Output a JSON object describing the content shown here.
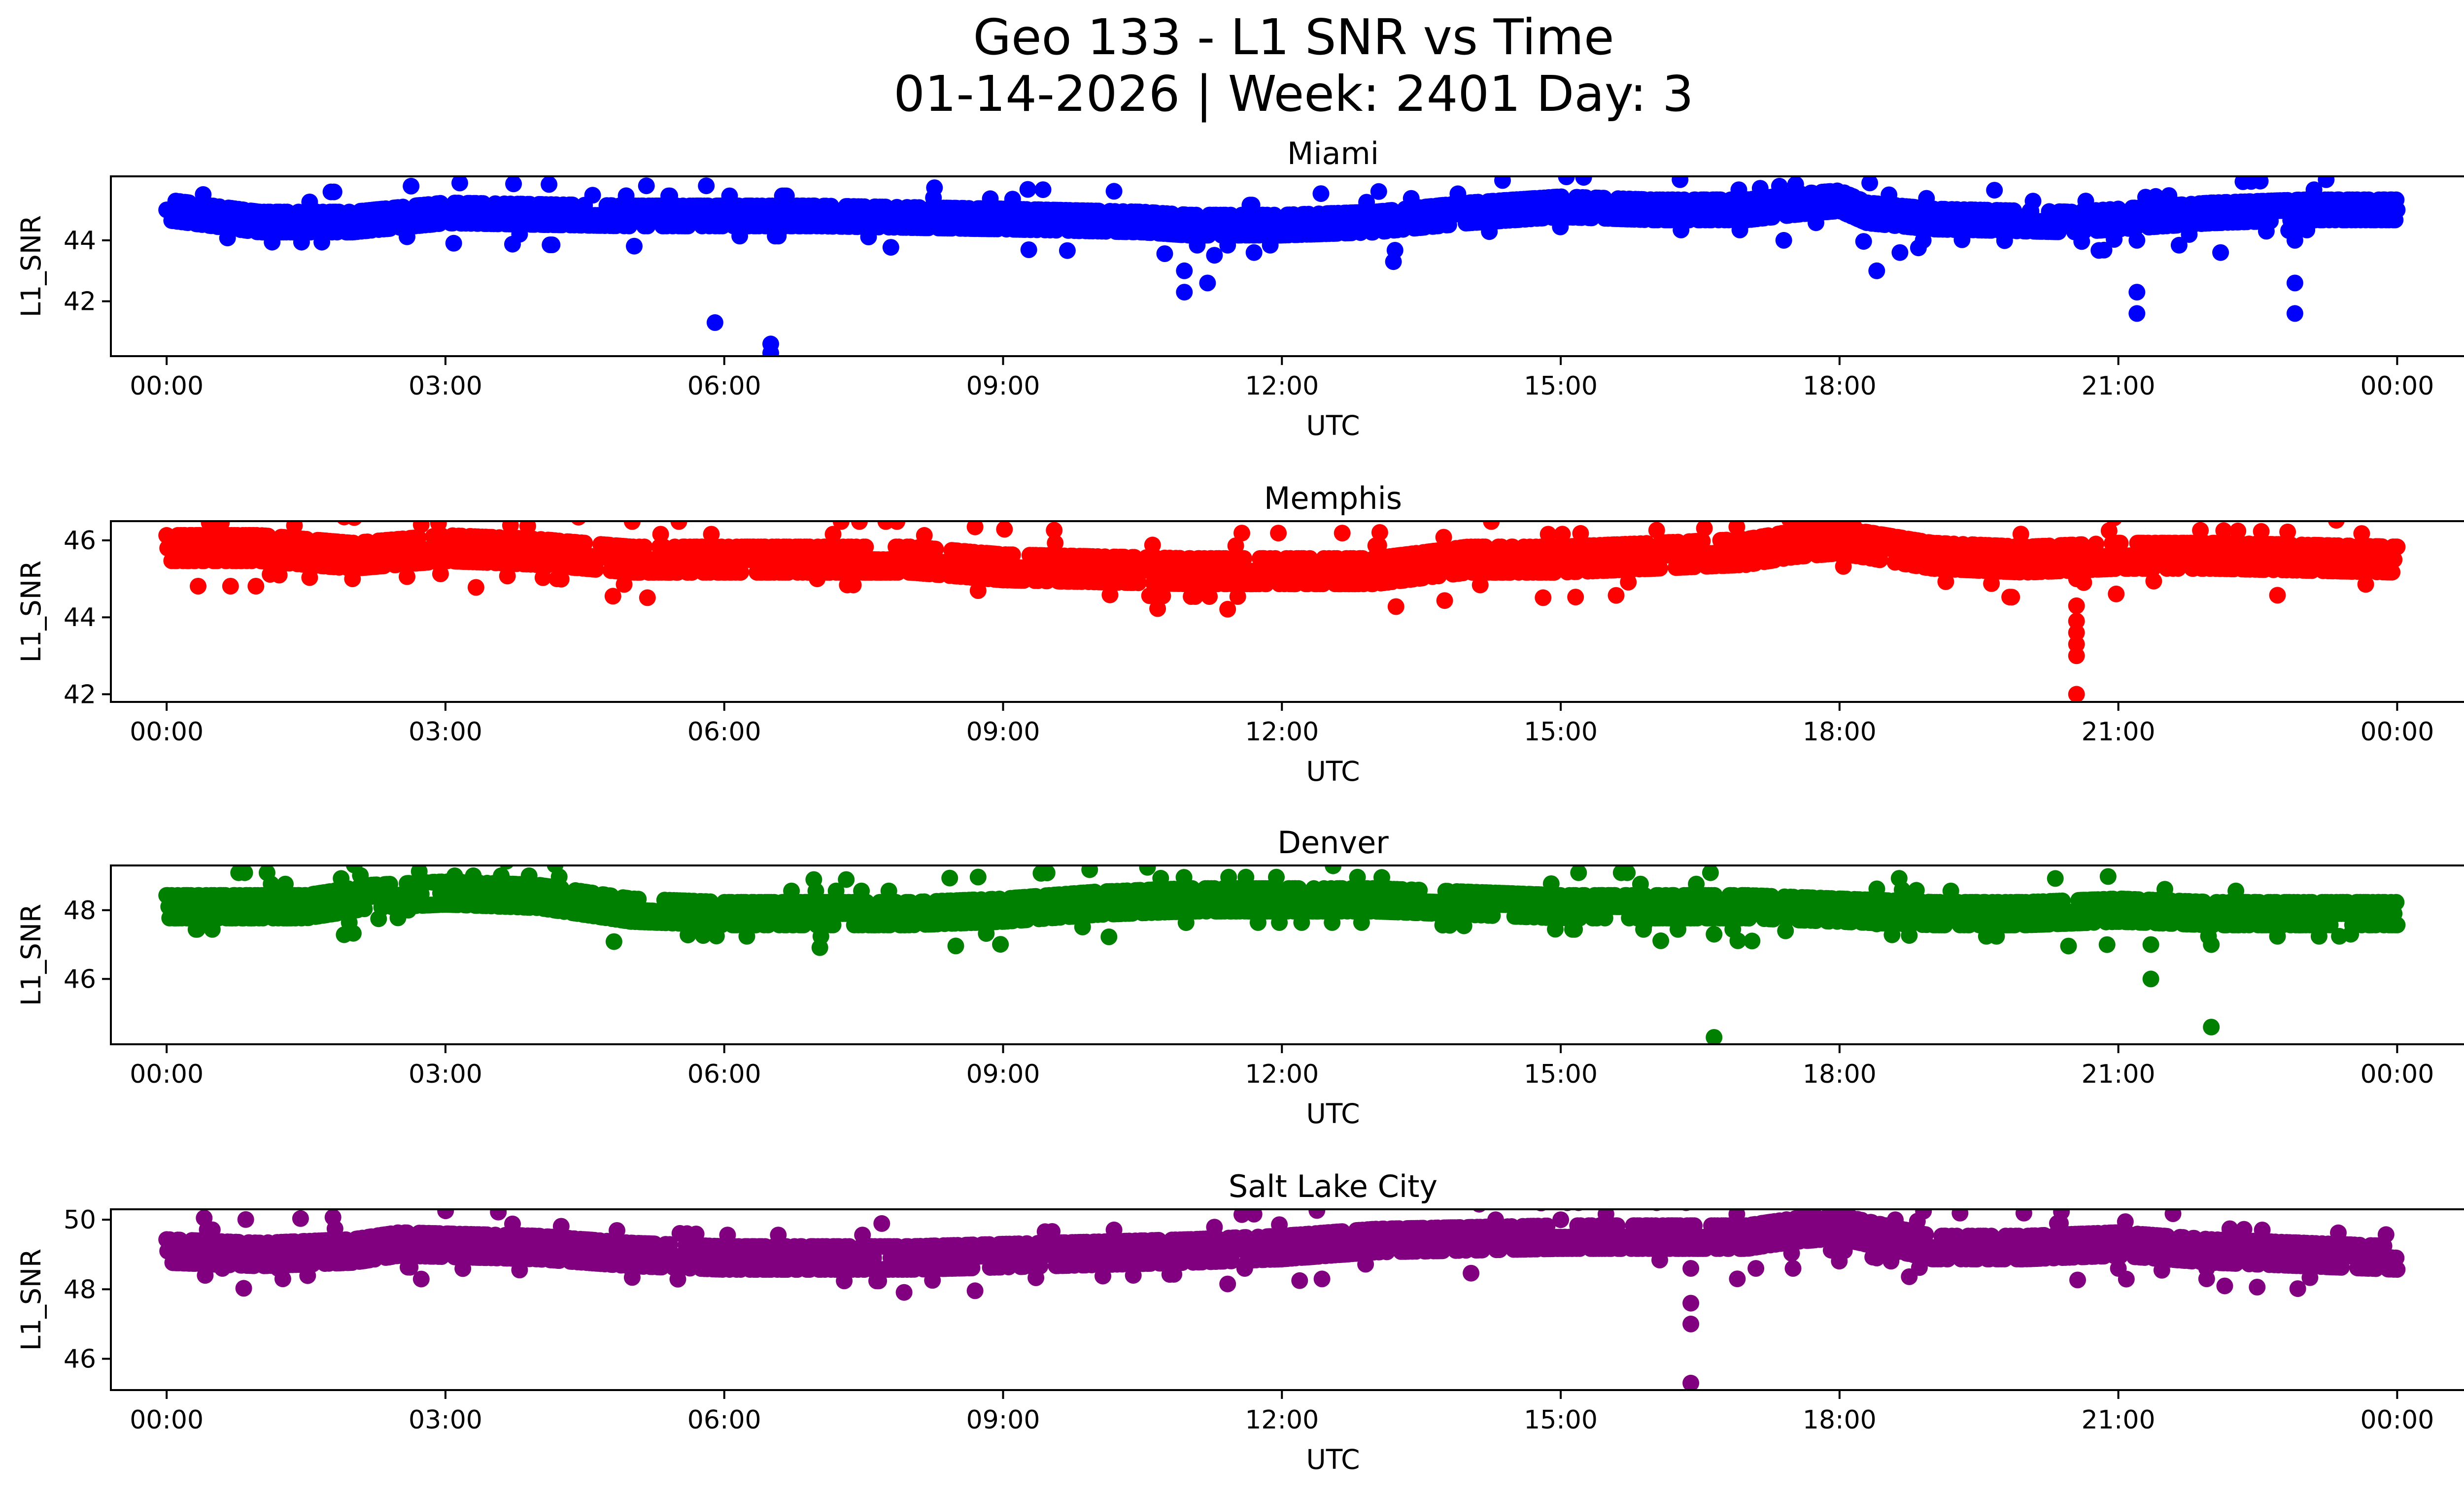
{
  "chart_data": {
    "type": "scatter",
    "title_line1": "Geo 133 - L1 SNR vs Time",
    "title_line2": "01-14-2026 | Week: 2401 Day: 3",
    "xlabel": "UTC",
    "ylabel": "L1_SNR",
    "x_unit": "hours UTC",
    "xlim": [
      -0.6,
      25.7
    ],
    "x_ticks": [
      0,
      3,
      6,
      9,
      12,
      15,
      18,
      21,
      24
    ],
    "x_tick_labels": [
      "00:00",
      "03:00",
      "06:00",
      "09:00",
      "12:00",
      "15:00",
      "18:00",
      "21:00",
      "00:00"
    ],
    "panels": [
      {
        "name": "Miami",
        "color": "#0000ff",
        "ylim": [
          40.2,
          46.1
        ],
        "y_ticks": [
          42,
          44
        ],
        "y_tick_labels": [
          "42",
          "44"
        ],
        "baseline": [
          [
            0,
            45.0
          ],
          [
            0.5,
            44.8
          ],
          [
            1.0,
            44.6
          ],
          [
            2.0,
            44.6
          ],
          [
            3.0,
            44.9
          ],
          [
            5.0,
            44.8
          ],
          [
            7.0,
            44.8
          ],
          [
            9.0,
            44.7
          ],
          [
            10.5,
            44.6
          ],
          [
            11.0,
            44.5
          ],
          [
            12.0,
            44.5
          ],
          [
            13.0,
            44.6
          ],
          [
            14.0,
            44.9
          ],
          [
            15.0,
            45.1
          ],
          [
            16.0,
            45.0
          ],
          [
            17.0,
            45.0
          ],
          [
            17.6,
            45.2
          ],
          [
            18.0,
            45.3
          ],
          [
            18.3,
            44.9
          ],
          [
            19.0,
            44.7
          ],
          [
            20.5,
            44.6
          ],
          [
            21.0,
            44.7
          ],
          [
            22.0,
            44.9
          ],
          [
            23.0,
            45.0
          ],
          [
            24.0,
            45.0
          ]
        ],
        "outliers": [
          [
            5.9,
            41.3
          ],
          [
            6.5,
            40.6
          ],
          [
            6.5,
            40.3
          ],
          [
            10.95,
            43.0
          ],
          [
            10.95,
            42.3
          ],
          [
            11.2,
            42.6
          ],
          [
            11.7,
            43.6
          ],
          [
            13.2,
            43.3
          ],
          [
            17.4,
            44.0
          ],
          [
            18.4,
            43.0
          ],
          [
            18.65,
            43.6
          ],
          [
            18.9,
            44.0
          ],
          [
            21.2,
            42.3
          ],
          [
            21.2,
            41.6
          ],
          [
            21.2,
            44.0
          ],
          [
            22.1,
            43.6
          ],
          [
            22.9,
            42.6
          ],
          [
            22.9,
            41.6
          ],
          [
            22.9,
            44.0
          ]
        ]
      },
      {
        "name": "Memphis",
        "color": "#ff0000",
        "ylim": [
          41.8,
          46.5
        ],
        "y_ticks": [
          42,
          44,
          46
        ],
        "y_tick_labels": [
          "42",
          "44",
          "46"
        ],
        "baseline": [
          [
            0,
            45.8
          ],
          [
            1.0,
            45.8
          ],
          [
            2.0,
            45.6
          ],
          [
            3.0,
            45.8
          ],
          [
            4.0,
            45.7
          ],
          [
            5.0,
            45.5
          ],
          [
            8.0,
            45.5
          ],
          [
            9.0,
            45.3
          ],
          [
            11.0,
            45.2
          ],
          [
            13.0,
            45.2
          ],
          [
            14.0,
            45.5
          ],
          [
            15.0,
            45.5
          ],
          [
            16.0,
            45.6
          ],
          [
            17.0,
            45.7
          ],
          [
            17.5,
            45.9
          ],
          [
            18.0,
            46.0
          ],
          [
            18.5,
            45.8
          ],
          [
            19.0,
            45.6
          ],
          [
            20.0,
            45.5
          ],
          [
            21.0,
            45.6
          ],
          [
            22.0,
            45.6
          ],
          [
            24.0,
            45.5
          ]
        ],
        "outliers": [
          [
            2.0,
            45.0
          ],
          [
            4.2,
            45.0
          ],
          [
            7.0,
            45.0
          ],
          [
            20.55,
            45.0
          ],
          [
            20.55,
            44.3
          ],
          [
            20.55,
            43.9
          ],
          [
            20.55,
            43.6
          ],
          [
            20.55,
            43.3
          ],
          [
            20.55,
            43.0
          ],
          [
            20.55,
            42.0
          ]
        ]
      },
      {
        "name": "Denver",
        "color": "#008000",
        "ylim": [
          44.1,
          49.3
        ],
        "y_ticks": [
          46,
          48
        ],
        "y_tick_labels": [
          "46",
          "48"
        ],
        "baseline": [
          [
            0,
            48.1
          ],
          [
            1.5,
            48.1
          ],
          [
            2.2,
            48.4
          ],
          [
            3.0,
            48.5
          ],
          [
            4.0,
            48.4
          ],
          [
            4.5,
            48.2
          ],
          [
            5.0,
            48.0
          ],
          [
            6.0,
            47.9
          ],
          [
            8.0,
            47.9
          ],
          [
            9.0,
            48.0
          ],
          [
            10.0,
            48.2
          ],
          [
            11.0,
            48.3
          ],
          [
            13.0,
            48.3
          ],
          [
            14.0,
            48.2
          ],
          [
            15.0,
            48.1
          ],
          [
            17.0,
            48.1
          ],
          [
            18.0,
            48.0
          ],
          [
            19.0,
            47.9
          ],
          [
            20.0,
            47.9
          ],
          [
            21.0,
            48.0
          ],
          [
            22.0,
            47.9
          ],
          [
            24.0,
            47.9
          ]
        ],
        "outliers": [
          [
            2.6,
            48.0
          ],
          [
            3.1,
            49.0
          ],
          [
            3.3,
            49.0
          ],
          [
            3.6,
            49.0
          ],
          [
            3.9,
            49.0
          ],
          [
            15.9,
            47.6
          ],
          [
            16.65,
            47.3
          ],
          [
            16.65,
            44.3
          ],
          [
            18.4,
            47.6
          ],
          [
            21.35,
            47.0
          ],
          [
            21.35,
            46.0
          ],
          [
            22.0,
            47.0
          ],
          [
            22.0,
            44.6
          ],
          [
            23.5,
            47.3
          ]
        ]
      },
      {
        "name": "Salt Lake City",
        "color": "#800080",
        "ylim": [
          45.1,
          50.3
        ],
        "y_ticks": [
          46,
          48,
          50
        ],
        "y_tick_labels": [
          "46",
          "48",
          "50"
        ],
        "baseline": [
          [
            0,
            49.1
          ],
          [
            1.0,
            49.0
          ],
          [
            2.0,
            49.1
          ],
          [
            2.5,
            49.3
          ],
          [
            4.0,
            49.2
          ],
          [
            5.0,
            49.0
          ],
          [
            6.0,
            48.9
          ],
          [
            8.0,
            48.9
          ],
          [
            9.5,
            49.0
          ],
          [
            11.0,
            49.1
          ],
          [
            12.0,
            49.2
          ],
          [
            13.0,
            49.4
          ],
          [
            15.0,
            49.5
          ],
          [
            16.0,
            49.5
          ],
          [
            17.0,
            49.5
          ],
          [
            17.5,
            49.7
          ],
          [
            18.0,
            49.8
          ],
          [
            18.5,
            49.5
          ],
          [
            19.0,
            49.2
          ],
          [
            20.0,
            49.2
          ],
          [
            21.0,
            49.3
          ],
          [
            22.0,
            49.1
          ],
          [
            23.0,
            49.0
          ],
          [
            24.0,
            48.9
          ]
        ],
        "outliers": [
          [
            0.6,
            48.6
          ],
          [
            1.2,
            48.6
          ],
          [
            1.25,
            48.3
          ],
          [
            11.6,
            48.6
          ],
          [
            14.3,
            50.0
          ],
          [
            15.0,
            50.0
          ],
          [
            16.4,
            48.6
          ],
          [
            16.4,
            47.6
          ],
          [
            16.4,
            47.0
          ],
          [
            16.4,
            45.3
          ],
          [
            16.9,
            48.3
          ],
          [
            17.1,
            48.6
          ],
          [
            17.5,
            48.6
          ],
          [
            17.9,
            50.0
          ],
          [
            18.6,
            50.0
          ],
          [
            21.0,
            48.6
          ],
          [
            21.95,
            48.6
          ],
          [
            21.95,
            48.3
          ],
          [
            22.3,
            49.6
          ]
        ]
      }
    ]
  }
}
